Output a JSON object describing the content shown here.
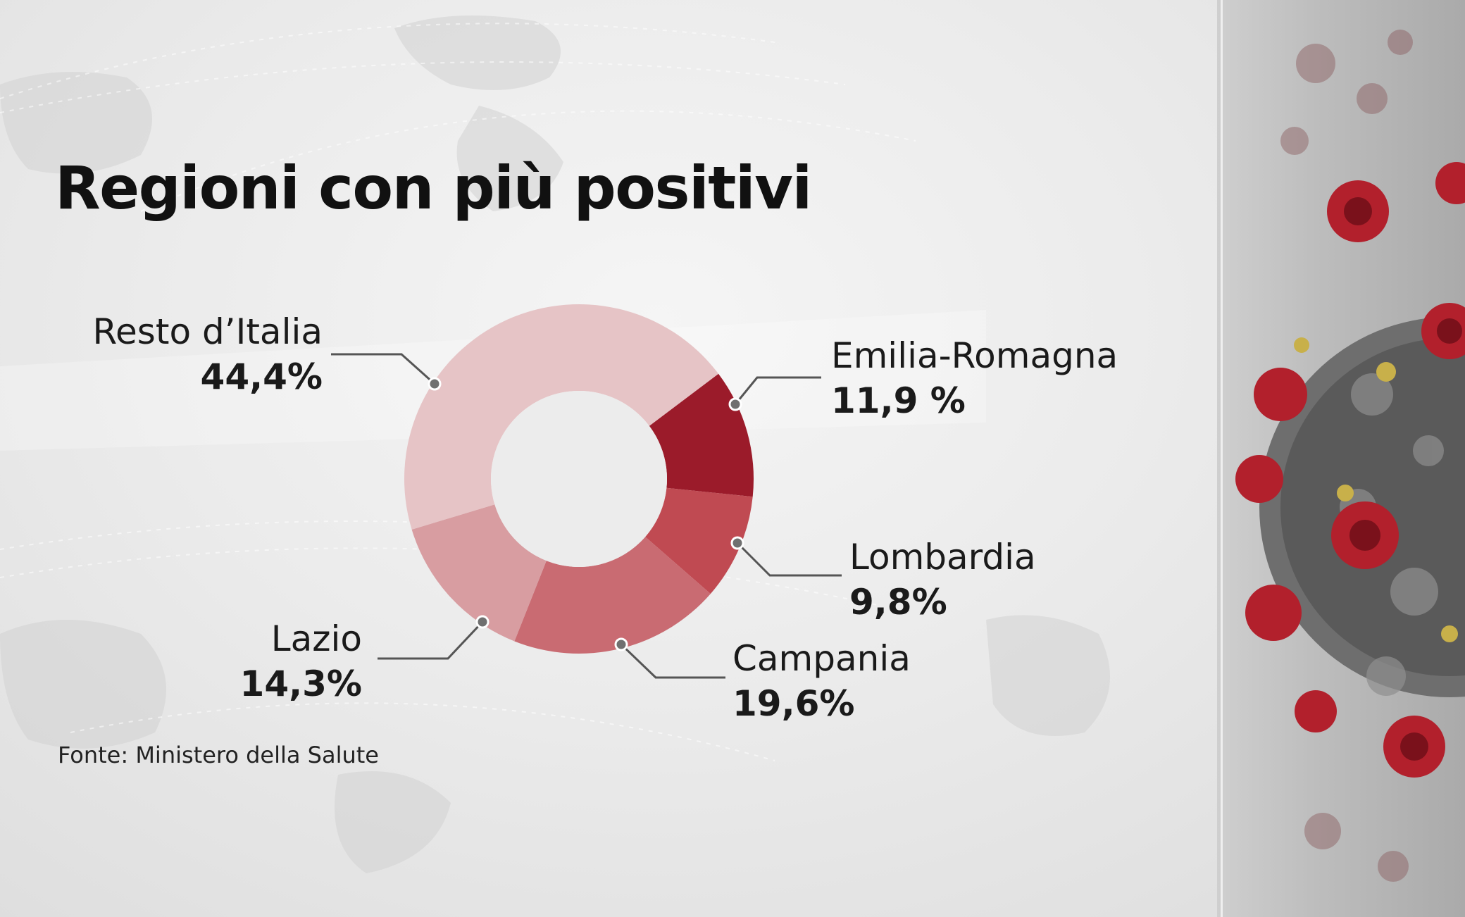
{
  "title": "Regioni con più positivi",
  "source": "Fonte: Ministero della Salute",
  "colors": {
    "background": "#e6e6e6",
    "title": "#111111",
    "leader_line": "#555555",
    "accent_dark_red": "#9b1b2a"
  },
  "chart_data": {
    "type": "pie",
    "variant": "donut",
    "title": "Regioni con più positivi",
    "slices": [
      {
        "name": "Emilia-Romagna",
        "value": 11.9,
        "label": "11,9 %",
        "color": "#9b1b2a"
      },
      {
        "name": "Lombardia",
        "value": 9.8,
        "label": "9,8%",
        "color": "#c04a52"
      },
      {
        "name": "Campania",
        "value": 19.6,
        "label": "19,6%",
        "color": "#c96b72"
      },
      {
        "name": "Lazio",
        "value": 14.3,
        "label": "14,3%",
        "color": "#d89da1"
      },
      {
        "name": "Resto d’Italia",
        "value": 44.4,
        "label": "44,4%",
        "color": "#e6c4c6"
      }
    ]
  }
}
